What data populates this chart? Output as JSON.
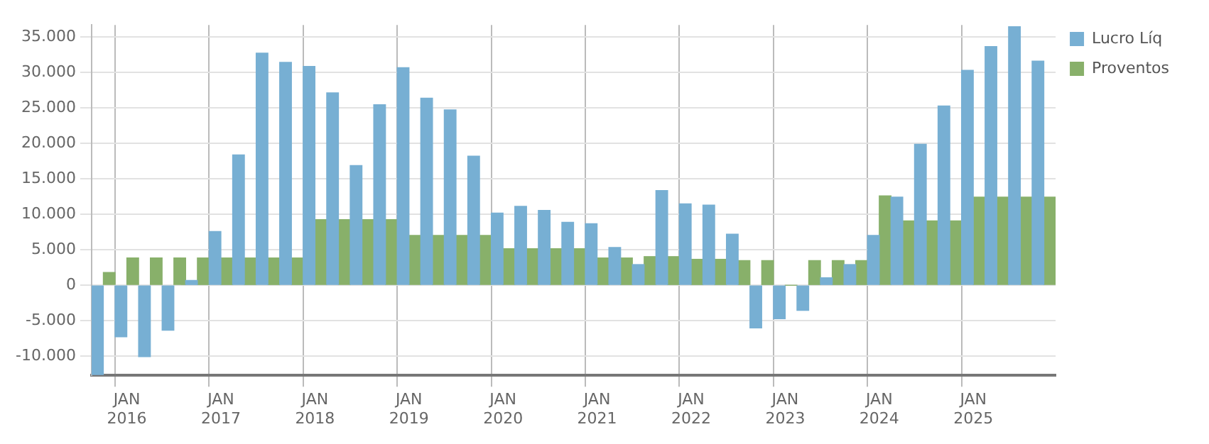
{
  "chart_data": {
    "type": "bar",
    "categories": [
      null,
      "JAN 2016",
      null,
      null,
      null,
      "JAN 2017",
      null,
      null,
      null,
      "JAN 2018",
      null,
      null,
      null,
      "JAN 2019",
      null,
      null,
      null,
      "JAN 2020",
      null,
      null,
      null,
      "JAN 2021",
      null,
      null,
      null,
      "JAN 2022",
      null,
      null,
      null,
      "JAN 2023",
      null,
      null,
      null,
      "JAN 2024",
      null,
      null,
      null,
      "JAN 2025",
      null,
      null,
      null
    ],
    "series": [
      {
        "name": "Lucro Líq",
        "color": "#77afd3",
        "values": [
          -12600,
          -7270,
          -10060,
          -6330,
          680,
          7580,
          18380,
          32730,
          31420,
          30860,
          27140,
          16890,
          25460,
          30680,
          26390,
          24720,
          18200,
          10180,
          11120,
          10560,
          8880,
          8690,
          5340,
          2920,
          13350,
          11490,
          11300,
          7200,
          -6020,
          -4720,
          -3540,
          1060,
          2920,
          7020,
          12420,
          19870,
          25270,
          30300,
          33660,
          36450,
          31610
        ]
      },
      {
        "name": "Proventos",
        "color": "#88b06a",
        "values": [
          1800,
          3850,
          3850,
          3850,
          3850,
          3850,
          3850,
          3850,
          3850,
          9250,
          9250,
          9250,
          9250,
          7020,
          7020,
          7020,
          7020,
          5150,
          5150,
          5150,
          5150,
          3850,
          3850,
          4040,
          4040,
          3660,
          3660,
          3480,
          3480,
          0,
          3480,
          3480,
          3480,
          12610,
          9070,
          9070,
          9070,
          12420,
          12420,
          12420,
          12420
        ]
      }
    ],
    "ylim": [
      -12700,
      36700
    ],
    "yticks": [
      {
        "value": -10000,
        "label": "-10.000"
      },
      {
        "value": -5000,
        "label": "-5.000"
      },
      0,
      {
        "value": 5000,
        "label": "5.000"
      },
      {
        "value": 10000,
        "label": "10.000"
      },
      {
        "value": 15000,
        "label": "15.000"
      },
      {
        "value": 20000,
        "label": "20.000"
      },
      {
        "value": 25000,
        "label": "25.000"
      },
      {
        "value": 30000,
        "label": "30.000"
      },
      {
        "value": 35000,
        "label": "35.000"
      }
    ],
    "grid": true,
    "legend": "top right"
  }
}
